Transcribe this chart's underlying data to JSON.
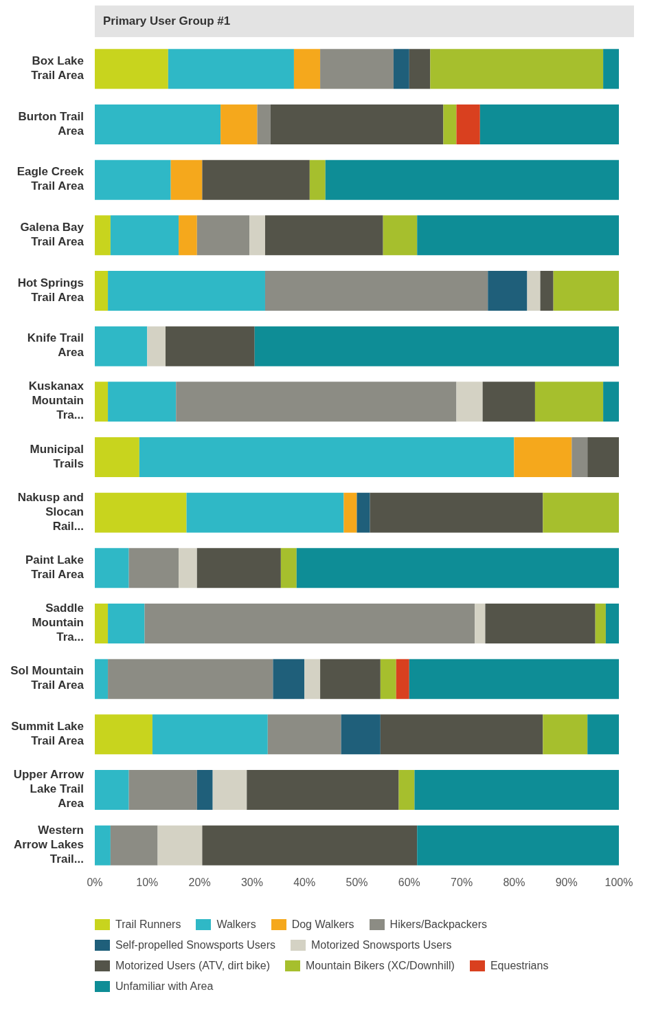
{
  "chart_data": {
    "type": "bar",
    "orientation": "horizontal",
    "stacked": true,
    "title": "Primary User Group #1",
    "categories": [
      "Box Lake Trail Area",
      "Burton Trail Area",
      "Eagle Creek Trail Area",
      "Galena Bay Trail Area",
      "Hot Springs Trail Area",
      "Knife Trail Area",
      "Kuskanax Mountain Tra...",
      "Municipal Trails",
      "Nakusp and Slocan Rail...",
      "Paint Lake Trail Area",
      "Saddle Mountain Tra...",
      "Sol Mountain Trail Area",
      "Summit Lake Trail Area",
      "Upper Arrow Lake Trail Area",
      "Western Arrow Lakes Trail..."
    ],
    "series": [
      {
        "name": "Trail Runners",
        "color": "#c8d41e",
        "values": [
          14,
          0,
          0,
          3,
          2.5,
          0,
          2.5,
          8.5,
          17.5,
          0,
          2.5,
          0,
          11,
          0,
          0
        ]
      },
      {
        "name": "Walkers",
        "color": "#2fb8c6",
        "values": [
          24,
          24,
          14.5,
          13,
          30,
          10,
          13,
          71.5,
          30,
          6.5,
          7,
          2.5,
          22,
          6.5,
          3
        ]
      },
      {
        "name": "Dog Walkers",
        "color": "#f5a81c",
        "values": [
          5,
          7,
          6,
          3.5,
          0,
          0,
          0,
          11,
          2.5,
          0,
          0,
          0,
          0,
          0,
          0
        ]
      },
      {
        "name": "Hikers/Backpackers",
        "color": "#8c8c84",
        "values": [
          14,
          2.5,
          0,
          10,
          42.5,
          0,
          53.5,
          3,
          0,
          9.5,
          63,
          31.5,
          14,
          13,
          9
        ]
      },
      {
        "name": "Self-propelled Snowsports Users",
        "color": "#1f5f7a",
        "values": [
          3,
          0,
          0,
          0,
          7.5,
          0,
          0,
          0,
          2.5,
          0,
          0,
          6,
          7.5,
          3,
          0
        ]
      },
      {
        "name": "Motorized Snowsports Users",
        "color": "#d4d2c4",
        "values": [
          0,
          0,
          0,
          3,
          2.5,
          3.5,
          5,
          0,
          0,
          3.5,
          2,
          3,
          0,
          6.5,
          8.5
        ]
      },
      {
        "name": "Motorized Users (ATV, dirt bike)",
        "color": "#545449",
        "values": [
          4,
          33,
          20.5,
          22.5,
          2.5,
          17,
          10,
          6,
          33,
          16,
          21,
          11.5,
          31,
          29,
          41
        ]
      },
      {
        "name": "Mountain Bikers (XC/Downhill)",
        "color": "#a6bf2d",
        "values": [
          33,
          2.5,
          3,
          6.5,
          12.5,
          0,
          13,
          0,
          14.5,
          3,
          2,
          3,
          8.5,
          3,
          0
        ]
      },
      {
        "name": "Equestrians",
        "color": "#d9401f",
        "values": [
          0,
          4.5,
          0,
          0,
          0,
          0,
          0,
          0,
          0,
          0,
          0,
          2.5,
          0,
          0,
          0
        ]
      },
      {
        "name": "Unfamiliar with Area",
        "color": "#0e8d96",
        "values": [
          3,
          26.5,
          56,
          38.5,
          0,
          69.5,
          3,
          0,
          0,
          61.5,
          2.5,
          40,
          6,
          39,
          38.5
        ]
      }
    ],
    "xlim": [
      0,
      100
    ],
    "xticks": [
      {
        "value": 0,
        "label": "0%"
      },
      {
        "value": 10,
        "label": "10%"
      },
      {
        "value": 20,
        "label": "20%"
      },
      {
        "value": 30,
        "label": "30%"
      },
      {
        "value": 40,
        "label": "40%"
      },
      {
        "value": 50,
        "label": "50%"
      },
      {
        "value": 60,
        "label": "60%"
      },
      {
        "value": 70,
        "label": "70%"
      },
      {
        "value": 80,
        "label": "80%"
      },
      {
        "value": 90,
        "label": "90%"
      },
      {
        "value": 100,
        "label": "100%"
      }
    ],
    "legend": "bottom"
  }
}
